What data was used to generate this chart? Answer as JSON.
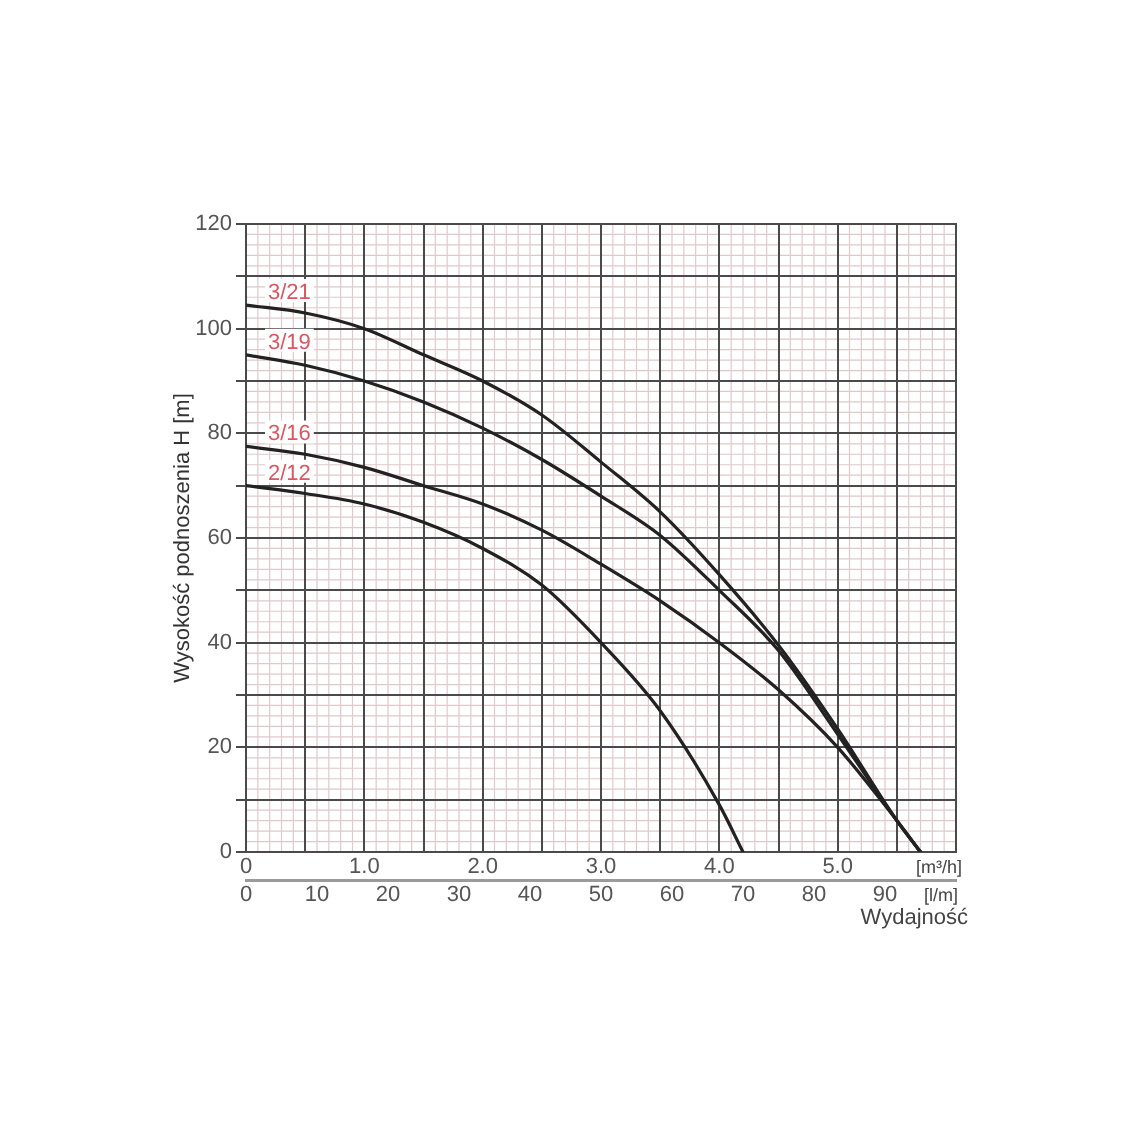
{
  "chart_data": {
    "type": "line",
    "xlabel": "[m³/h]",
    "x2label": "[l/m]",
    "ylabel": "Wysokość podnoszenia H [m]",
    "annotations": [
      "Wydajność"
    ],
    "xlim": [
      0,
      6
    ],
    "xticks": [
      0,
      {
        "value": 0.5,
        "label": null
      },
      {
        "value": 1,
        "label": "1.0"
      },
      {
        "value": 1.5,
        "label": null
      },
      {
        "value": 2,
        "label": "2.0"
      },
      {
        "value": 2.5,
        "label": null
      },
      {
        "value": 3,
        "label": "3.0"
      },
      {
        "value": 3.5,
        "label": null
      },
      {
        "value": 4,
        "label": "4.0"
      },
      {
        "value": 4.5,
        "label": null
      },
      {
        "value": 5,
        "label": "5.0"
      },
      {
        "value": 5.5,
        "label": null
      }
    ],
    "x2lim": [
      0,
      100
    ],
    "x2ticks": [
      0,
      10,
      20,
      30,
      40,
      50,
      60,
      70,
      80,
      90
    ],
    "ylim": [
      0,
      120
    ],
    "yticks": [
      0,
      {
        "value": 10,
        "label": null
      },
      20,
      {
        "value": 30,
        "label": null
      },
      40,
      {
        "value": 50,
        "label": null
      },
      60,
      {
        "value": 70,
        "label": null
      },
      80,
      {
        "value": 90,
        "label": null
      },
      100,
      {
        "value": 110,
        "label": null
      },
      120
    ],
    "grid": true,
    "series": [
      {
        "name": "3/21",
        "color": "#222222",
        "x": [
          0,
          0.5,
          1,
          1.5,
          2,
          2.5,
          3,
          3.5,
          4,
          4.5,
          5,
          5.5,
          5.7
        ],
        "values": [
          104.5,
          103,
          100,
          95,
          90,
          83.5,
          74.5,
          65,
          53,
          39.5,
          23.5,
          6,
          0
        ]
      },
      {
        "name": "3/19",
        "color": "#222222",
        "x": [
          0,
          0.5,
          1,
          1.5,
          2,
          2.5,
          3,
          3.5,
          4,
          4.5,
          5,
          5.5,
          5.7
        ],
        "values": [
          95,
          93,
          90,
          86,
          81,
          75,
          68,
          60.5,
          50,
          38.5,
          22.5,
          6,
          0
        ]
      },
      {
        "name": "3/16",
        "color": "#222222",
        "x": [
          0,
          0.5,
          1,
          1.5,
          2,
          2.5,
          3,
          3.5,
          4,
          4.5,
          5,
          5.5,
          5.7
        ],
        "values": [
          77.5,
          76,
          73.5,
          70,
          66.5,
          61.5,
          55,
          48,
          40,
          31,
          20,
          6,
          0
        ]
      },
      {
        "name": "2/12",
        "color": "#222222",
        "x": [
          0,
          0.5,
          1,
          1.5,
          2,
          2.5,
          3,
          3.5,
          4,
          4.2
        ],
        "values": [
          70,
          68.5,
          66.5,
          63,
          58,
          51,
          40,
          27,
          9,
          0
        ]
      }
    ]
  }
}
